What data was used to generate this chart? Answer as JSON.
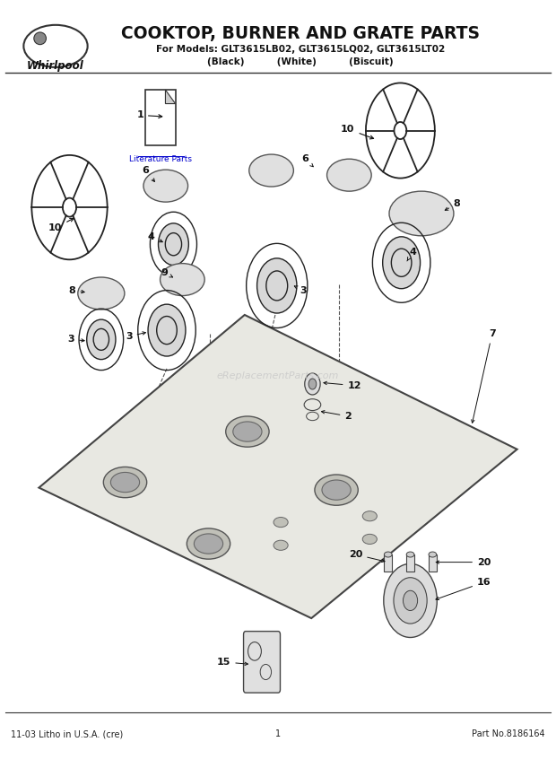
{
  "title": "COOKTOP, BURNER AND GRATE PARTS",
  "subtitle1": "For Models: GLT3615LB02, GLT3615LQ02, GLT3615LT02",
  "subtitle2": "(Black)          (White)          (Biscuit)",
  "whirlpool_text": "Whirlpool",
  "footer_left": "11-03 Litho in U.S.A. (cre)",
  "footer_center": "1",
  "footer_right": "Part No.8186164",
  "literature_label": "Literature Parts",
  "watermark": "eReplacementParts.com",
  "bg_color": "#ffffff"
}
